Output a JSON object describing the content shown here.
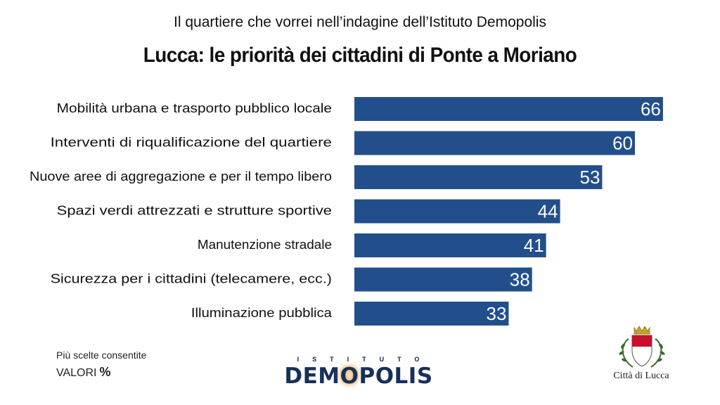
{
  "header": {
    "subtitle": "Il quartiere che vorrei nell’indagine dell’Istituto Demopolis",
    "title": "Lucca: le priorità dei cittadini di Ponte a Moriano"
  },
  "chart_data": {
    "type": "bar",
    "orientation": "horizontal",
    "categories": [
      "Mobilità urbana e trasporto pubblico locale",
      "Interventi di riqualificazione del quartiere",
      "Nuove aree di aggregazione e per il tempo libero",
      "Spazi verdi attrezzati e strutture sportive",
      "Manutenzione stradale",
      "Sicurezza per i cittadini (telecamere, ecc.)",
      "Illuminazione pubblica"
    ],
    "values": [
      66,
      60,
      53,
      44,
      41,
      38,
      33
    ],
    "title": "Lucca: le priorità dei cittadini di Ponte a Moriano",
    "xlabel": "",
    "ylabel": "",
    "xlim": [
      0,
      100
    ],
    "grid": false,
    "data_labels": true,
    "bar_color": "#224f8c",
    "label_color": "#ffffff"
  },
  "footer": {
    "note_line1": "Più scelte consentite",
    "note_line2": "VALORI",
    "note_unit": "%",
    "brand_top": "ISTITUTO",
    "brand_main_a": "DEM",
    "brand_main_o": "O",
    "brand_main_b": "POLIS",
    "crest_label": "Città di Lucca"
  },
  "colors": {
    "bar": "#224f8c",
    "brand": "#16305a",
    "crest_red": "#c8102e",
    "crest_gold": "#c9a227",
    "laurel": "#3b6b2a"
  },
  "icons": {
    "crest": "city-of-lucca-crest-icon"
  }
}
